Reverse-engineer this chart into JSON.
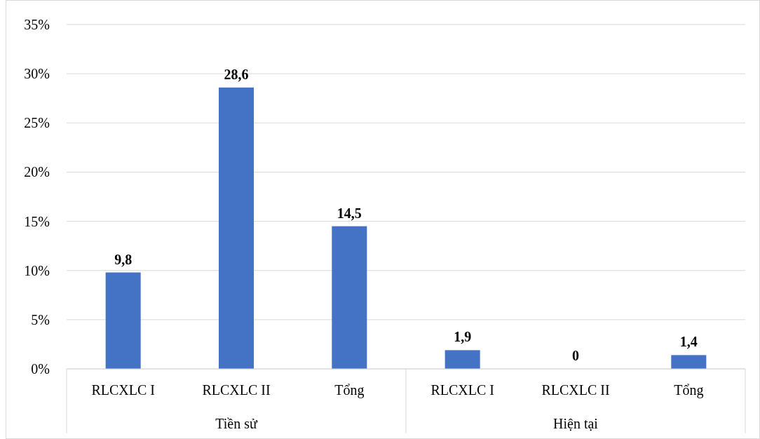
{
  "chart_data": {
    "type": "bar",
    "categories": [
      "RLCXLC I",
      "RLCXLC II",
      "Tổng",
      "RLCXLC I",
      "RLCXLC II",
      "Tổng"
    ],
    "values": [
      9.8,
      28.6,
      14.5,
      1.9,
      0,
      1.4
    ],
    "color": "#4472c4",
    "value_labels": [
      "9,8",
      "28,6",
      "14,5",
      "1,9",
      "0",
      "1,4"
    ],
    "ylim": [
      0,
      35
    ],
    "yticks": [
      {
        "value": 0,
        "label": "0%"
      },
      {
        "value": 5,
        "label": "5%"
      },
      {
        "value": 10,
        "label": "10%"
      },
      {
        "value": 15,
        "label": "15%"
      },
      {
        "value": 20,
        "label": "20%"
      },
      {
        "value": 25,
        "label": "25%"
      },
      {
        "value": 30,
        "label": "30%"
      },
      {
        "value": 35,
        "label": "35%"
      }
    ],
    "grid": "y",
    "annotations": [
      "Tiền sử",
      "Hiện tại"
    ]
  }
}
